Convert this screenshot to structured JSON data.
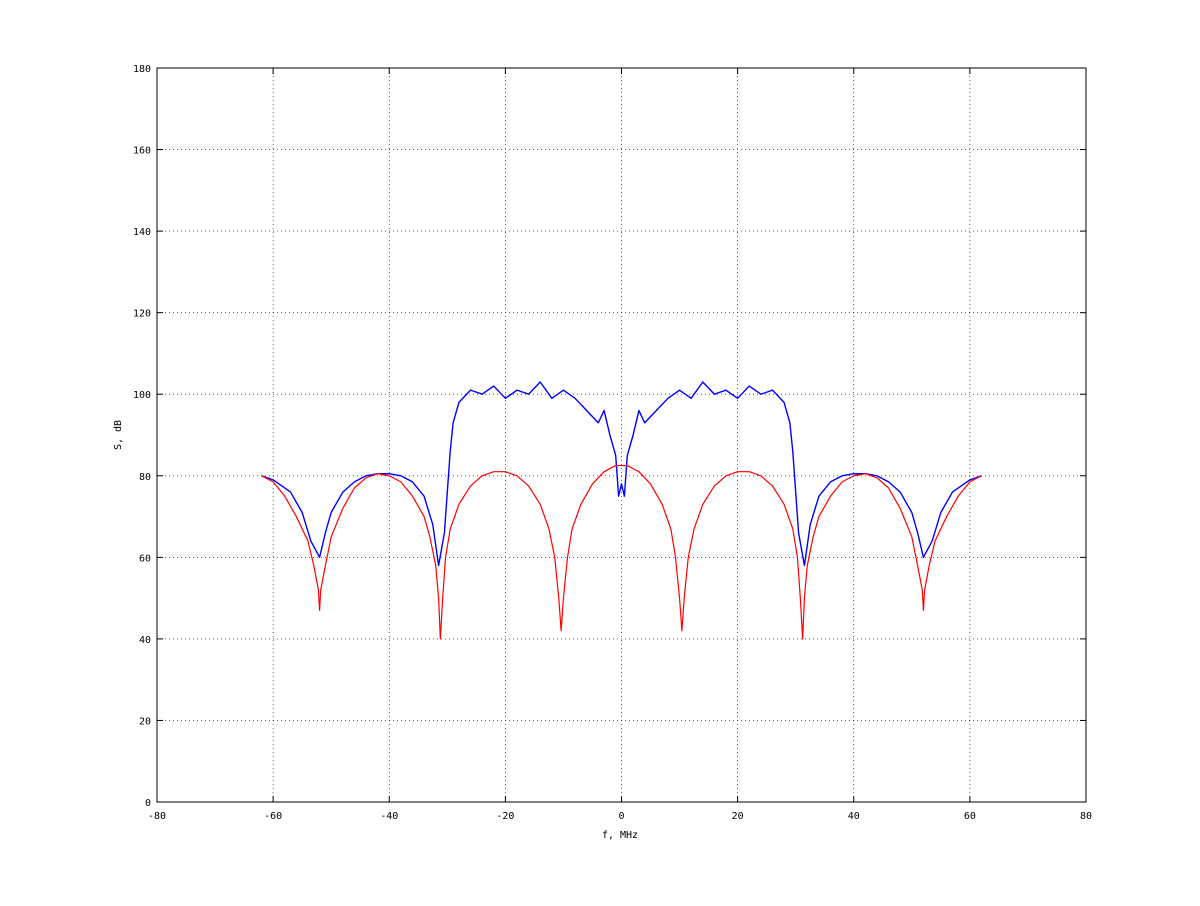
{
  "chart_data": {
    "type": "line",
    "xlabel": "f, MHz",
    "ylabel": "S, dB",
    "xlim": [
      -80,
      80
    ],
    "ylim": [
      0,
      180
    ],
    "xticks": [
      "-80",
      "-60",
      "-40",
      "-20",
      "0",
      "20",
      "40",
      "60",
      "80"
    ],
    "yticks": [
      "0",
      "20",
      "40",
      "60",
      "80",
      "100",
      "120",
      "140",
      "160",
      "180"
    ],
    "grid": true,
    "colors": {
      "series_1": "#0000ff",
      "series_2": "#ff0000"
    },
    "series": [
      {
        "color": "#0000ff",
        "points": [
          [
            -62,
            80
          ],
          [
            -60,
            79
          ],
          [
            -57,
            76
          ],
          [
            -55,
            71
          ],
          [
            -53.5,
            64
          ],
          [
            -52,
            60
          ],
          [
            -51,
            66
          ],
          [
            -50,
            71
          ],
          [
            -48,
            76
          ],
          [
            -46,
            78.5
          ],
          [
            -44,
            80
          ],
          [
            -42,
            80.5
          ],
          [
            -40,
            80.5
          ],
          [
            -38,
            80
          ],
          [
            -36,
            78.5
          ],
          [
            -34,
            75
          ],
          [
            -32.5,
            68
          ],
          [
            -31.5,
            58
          ],
          [
            -30.5,
            66
          ],
          [
            -30,
            76
          ],
          [
            -29.5,
            86
          ],
          [
            -29,
            93
          ],
          [
            -28,
            98
          ],
          [
            -26,
            101
          ],
          [
            -24,
            100
          ],
          [
            -22,
            102
          ],
          [
            -20,
            99
          ],
          [
            -18,
            101
          ],
          [
            -16,
            100
          ],
          [
            -14,
            103
          ],
          [
            -12,
            99
          ],
          [
            -10,
            101
          ],
          [
            -8,
            99
          ],
          [
            -6,
            96
          ],
          [
            -4,
            93
          ],
          [
            -3,
            96
          ],
          [
            -2,
            90
          ],
          [
            -1,
            85
          ],
          [
            -0.5,
            75
          ],
          [
            0,
            78
          ],
          [
            0.5,
            75
          ],
          [
            1,
            85
          ],
          [
            2,
            90
          ],
          [
            3,
            96
          ],
          [
            4,
            93
          ],
          [
            6,
            96
          ],
          [
            8,
            99
          ],
          [
            10,
            101
          ],
          [
            12,
            99
          ],
          [
            14,
            103
          ],
          [
            16,
            100
          ],
          [
            18,
            101
          ],
          [
            20,
            99
          ],
          [
            22,
            102
          ],
          [
            24,
            100
          ],
          [
            26,
            101
          ],
          [
            28,
            98
          ],
          [
            29,
            93
          ],
          [
            29.5,
            86
          ],
          [
            30,
            76
          ],
          [
            30.5,
            66
          ],
          [
            31.5,
            58
          ],
          [
            32.5,
            68
          ],
          [
            34,
            75
          ],
          [
            36,
            78.5
          ],
          [
            38,
            80
          ],
          [
            40,
            80.5
          ],
          [
            42,
            80.5
          ],
          [
            44,
            80
          ],
          [
            46,
            78.5
          ],
          [
            48,
            76
          ],
          [
            50,
            71
          ],
          [
            51,
            66
          ],
          [
            52,
            60
          ],
          [
            53.5,
            64
          ],
          [
            55,
            71
          ],
          [
            57,
            76
          ],
          [
            60,
            79
          ],
          [
            62,
            80
          ]
        ]
      },
      {
        "color": "#ff0000",
        "points": [
          [
            -62,
            80
          ],
          [
            -60,
            78.5
          ],
          [
            -58,
            75
          ],
          [
            -56,
            70
          ],
          [
            -54,
            64
          ],
          [
            -53,
            58
          ],
          [
            -52.2,
            52
          ],
          [
            -52,
            47
          ],
          [
            -51.8,
            52
          ],
          [
            -51,
            58
          ],
          [
            -50,
            65
          ],
          [
            -48,
            72
          ],
          [
            -46,
            77
          ],
          [
            -44,
            79.5
          ],
          [
            -42,
            80.5
          ],
          [
            -40,
            80
          ],
          [
            -38,
            78.5
          ],
          [
            -36,
            75
          ],
          [
            -34,
            70
          ],
          [
            -33,
            65
          ],
          [
            -32,
            58
          ],
          [
            -31.5,
            50
          ],
          [
            -31.2,
            40
          ],
          [
            -30.8,
            50
          ],
          [
            -30.3,
            60
          ],
          [
            -29.5,
            67
          ],
          [
            -28,
            73
          ],
          [
            -26,
            77.5
          ],
          [
            -24,
            80
          ],
          [
            -22,
            81
          ],
          [
            -20,
            81
          ],
          [
            -18,
            80
          ],
          [
            -16,
            77.5
          ],
          [
            -14,
            73
          ],
          [
            -12.5,
            67
          ],
          [
            -11.5,
            60
          ],
          [
            -10.8,
            50
          ],
          [
            -10.4,
            42
          ],
          [
            -10,
            50
          ],
          [
            -9.3,
            60
          ],
          [
            -8.5,
            67
          ],
          [
            -7,
            73
          ],
          [
            -5,
            78
          ],
          [
            -3,
            81
          ],
          [
            -1,
            82.5
          ],
          [
            0,
            82.5
          ],
          [
            1,
            82.5
          ],
          [
            3,
            81
          ],
          [
            5,
            78
          ],
          [
            7,
            73
          ],
          [
            8.5,
            67
          ],
          [
            9.3,
            60
          ],
          [
            10,
            50
          ],
          [
            10.4,
            42
          ],
          [
            10.8,
            50
          ],
          [
            11.5,
            60
          ],
          [
            12.5,
            67
          ],
          [
            14,
            73
          ],
          [
            16,
            77.5
          ],
          [
            18,
            80
          ],
          [
            20,
            81
          ],
          [
            22,
            81
          ],
          [
            24,
            80
          ],
          [
            26,
            77.5
          ],
          [
            28,
            73
          ],
          [
            29.5,
            67
          ],
          [
            30.3,
            60
          ],
          [
            30.8,
            50
          ],
          [
            31.2,
            40
          ],
          [
            31.5,
            50
          ],
          [
            32,
            58
          ],
          [
            33,
            65
          ],
          [
            34,
            70
          ],
          [
            36,
            75
          ],
          [
            38,
            78.5
          ],
          [
            40,
            80
          ],
          [
            42,
            80.5
          ],
          [
            44,
            79.5
          ],
          [
            46,
            77
          ],
          [
            48,
            72
          ],
          [
            50,
            65
          ],
          [
            51,
            58
          ],
          [
            51.8,
            52
          ],
          [
            52,
            47
          ],
          [
            52.2,
            52
          ],
          [
            53,
            58
          ],
          [
            54,
            64
          ],
          [
            56,
            70
          ],
          [
            58,
            75
          ],
          [
            60,
            78.5
          ],
          [
            62,
            80
          ]
        ]
      }
    ]
  }
}
